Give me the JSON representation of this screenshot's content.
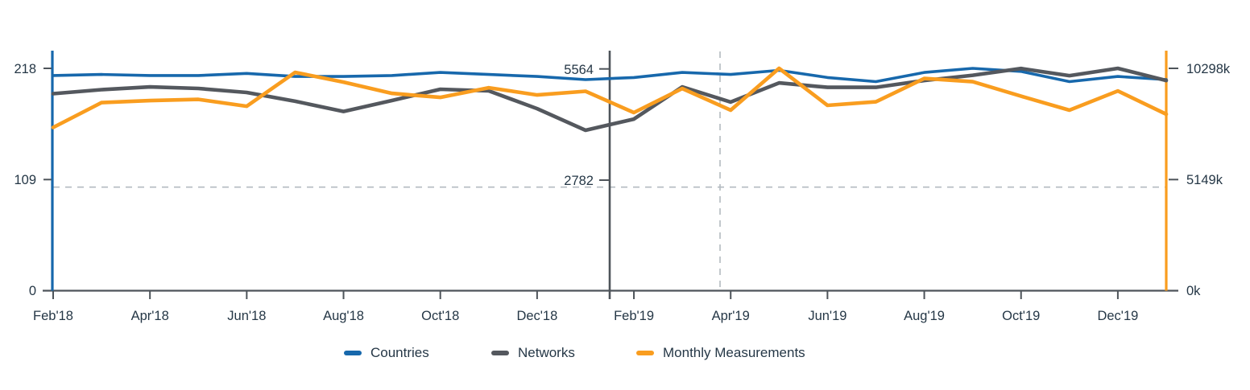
{
  "chart_data": {
    "type": "line",
    "title": "",
    "x": [
      "Feb'18",
      "Mar'18",
      "Apr'18",
      "May'18",
      "Jun'18",
      "Jul'18",
      "Aug'18",
      "Sep'18",
      "Oct'18",
      "Nov'18",
      "Dec'18",
      "Jan'19",
      "Feb'19",
      "Mar'19",
      "Apr'19",
      "May'19",
      "Jun'19",
      "Jul'19",
      "Aug'19",
      "Sep'19",
      "Oct'19",
      "Nov'19",
      "Dec'19",
      "Jan'20"
    ],
    "x_tick_labels": [
      "Feb'18",
      "Apr'18",
      "Jun'18",
      "Aug'18",
      "Oct'18",
      "Dec'18",
      "Feb'19",
      "Apr'19",
      "Jun'19",
      "Aug'19",
      "Oct'19",
      "Dec'19"
    ],
    "series": [
      {
        "name": "Countries",
        "axis": "left",
        "color": "#1768ac",
        "values": [
          211,
          212,
          211,
          211,
          213,
          210,
          210,
          211,
          214,
          212,
          210,
          207,
          209,
          214,
          212,
          216,
          209,
          205,
          214,
          218,
          215,
          205,
          210,
          207
        ]
      },
      {
        "name": "Networks",
        "axis": "middle",
        "color": "#54585e",
        "values": [
          4930,
          5030,
          5100,
          5060,
          4960,
          4740,
          4485,
          4760,
          5040,
          5000,
          4555,
          4015,
          4295,
          5100,
          4720,
          5200,
          5090,
          5090,
          5260,
          5390,
          5560,
          5380,
          5564,
          5260
        ]
      },
      {
        "name": "Monthly Measurements",
        "axis": "right",
        "color": "#f99d1f",
        "values": [
          7560,
          8710,
          8805,
          8860,
          8545,
          10110,
          9660,
          9140,
          8955,
          9400,
          9065,
          9235,
          8250,
          9365,
          8360,
          10298,
          8585,
          8750,
          9830,
          9680,
          9010,
          8360,
          9250,
          8175
        ]
      }
    ],
    "axes": {
      "left": {
        "tick_labels": [
          "0",
          "109",
          "218"
        ],
        "max": 218,
        "color": "#1768ac"
      },
      "middle": {
        "tick_labels": [
          "2782",
          "5564"
        ],
        "max": 5564,
        "color": "#54585e"
      },
      "right": {
        "tick_labels": [
          "0k",
          "5149k",
          "10298k"
        ],
        "max": 10298,
        "color": "#f99d1f"
      }
    },
    "legend": {
      "position": "bottom",
      "items": [
        {
          "label": "Countries",
          "color": "#1768ac"
        },
        {
          "label": "Networks",
          "color": "#54585e"
        },
        {
          "label": "Monthly Measurements",
          "color": "#f99d1f"
        }
      ]
    },
    "annotations": {
      "horizontal_dashed_gridline_fraction": 0.466,
      "vertical_dashed_line_month_index": 13.78
    },
    "axis_range_months": 23,
    "grid": "single dashed horizontal gridline, single dashed vertical marker line"
  },
  "colors": {
    "axis_line": "#4e545a",
    "dashed_line": "#b3bac0",
    "text": "#253746"
  }
}
